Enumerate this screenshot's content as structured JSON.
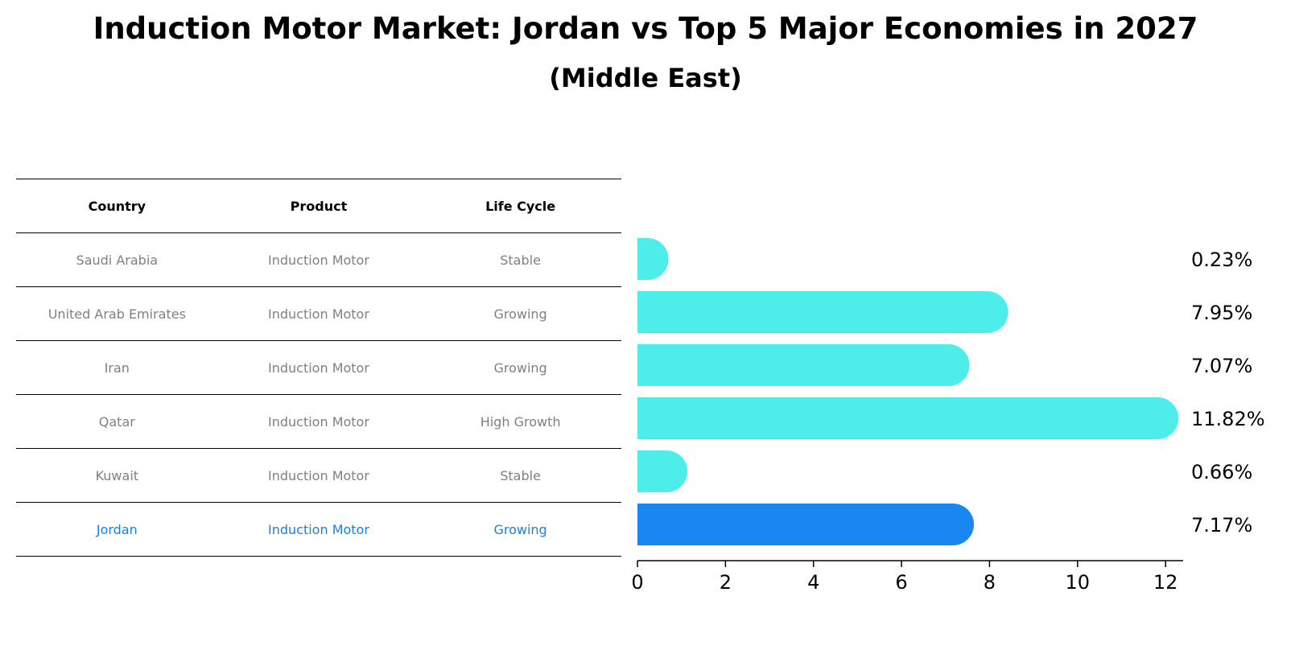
{
  "header": {
    "title": "Induction Motor Market: Jordan vs Top 5 Major Economies in 2027",
    "subtitle": "(Middle East)"
  },
  "table": {
    "columns": [
      "Country",
      "Product",
      "Life Cycle"
    ],
    "rows": [
      {
        "country": "Saudi Arabia",
        "product": "Induction Motor",
        "life_cycle": "Stable"
      },
      {
        "country": "United Arab Emirates",
        "product": "Induction Motor",
        "life_cycle": "Growing"
      },
      {
        "country": "Iran",
        "product": "Induction Motor",
        "life_cycle": "Growing"
      },
      {
        "country": "Qatar",
        "product": "Induction Motor",
        "life_cycle": "High Growth"
      },
      {
        "country": "Kuwait",
        "product": "Induction Motor",
        "life_cycle": "Stable"
      },
      {
        "country": "Jordan",
        "product": "Induction Motor",
        "life_cycle": "Growing"
      }
    ]
  },
  "colors": {
    "bar": "#4deeea",
    "highlight": "#1a86f0",
    "text_muted": "#808080",
    "highlight_text": "#1a80e0"
  },
  "chart_data": {
    "type": "bar",
    "orientation": "horizontal",
    "title": "Induction Motor Market: Jordan vs Top 5 Major Economies in 2027",
    "subtitle": "(Middle East)",
    "categories": [
      "Saudi Arabia",
      "United Arab Emirates",
      "Iran",
      "Qatar",
      "Kuwait",
      "Jordan"
    ],
    "values": [
      0.23,
      7.95,
      7.07,
      11.82,
      0.66,
      7.17
    ],
    "value_labels": [
      "0.23%",
      "7.95%",
      "7.07%",
      "11.82%",
      "0.66%",
      "7.17%"
    ],
    "highlight": "Jordan",
    "xlim": [
      0,
      12.4
    ],
    "xticks": [
      0,
      2,
      4,
      6,
      8,
      10,
      12
    ],
    "xlabel": "",
    "ylabel": "",
    "grid": false,
    "legend": "none"
  }
}
